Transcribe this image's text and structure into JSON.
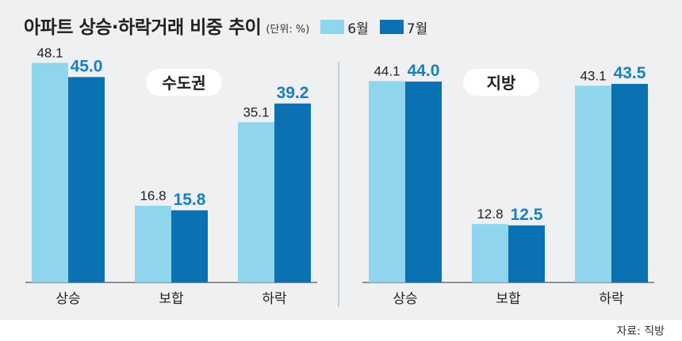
{
  "header": {
    "title": "아파트 상승·하락거래 비중 추이",
    "unit": "(단위: %)"
  },
  "legend": [
    {
      "label": "6월",
      "color": "#8fd5ee"
    },
    {
      "label": "7월",
      "color": "#0a71b3"
    }
  ],
  "source": "자료: 직방",
  "colors": {
    "june_bar": "#8fd5ee",
    "july_bar": "#0a71b3",
    "july_label": "#1a7fbf",
    "june_label": "#222222",
    "panel_bg": "#eef0f2",
    "divider": "#c9cdd1",
    "badge_bg": "#ffffff"
  },
  "chart_data": [
    {
      "type": "bar",
      "title": "수도권",
      "categories": [
        "상승",
        "보합",
        "하락"
      ],
      "series": [
        {
          "name": "6월",
          "values": [
            48.1,
            16.8,
            35.1
          ]
        },
        {
          "name": "7월",
          "values": [
            45.0,
            15.8,
            39.2
          ]
        }
      ],
      "ylim": [
        0,
        52
      ],
      "grid": false,
      "legend": "top"
    },
    {
      "type": "bar",
      "title": "지방",
      "categories": [
        "상승",
        "보합",
        "하락"
      ],
      "series": [
        {
          "name": "6월",
          "values": [
            44.1,
            12.8,
            43.1
          ]
        },
        {
          "name": "7월",
          "values": [
            44.0,
            12.5,
            43.5
          ]
        }
      ],
      "ylim": [
        0,
        52
      ],
      "grid": false,
      "legend": "top"
    }
  ]
}
